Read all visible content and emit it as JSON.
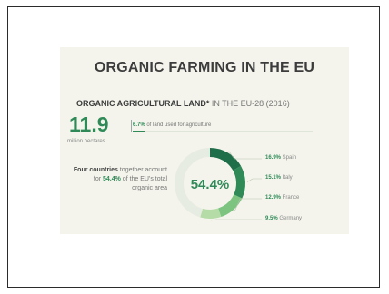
{
  "title": "ORGANIC FARMING IN THE EU",
  "subtitle": {
    "bold": "ORGANIC AGRICULTURAL LAND*",
    "rest": " IN THE EU-28 (2016)"
  },
  "headline": {
    "value": "11.9",
    "unit": "million hectares",
    "share_pct": "6.7%",
    "share_text": " of land used for agriculture",
    "share_fraction": 0.067
  },
  "note": {
    "bold": "Four countries",
    "text1": " together account for ",
    "highlight": "54.4%",
    "text2": " of the EU's total organic area"
  },
  "center_label": "54.4%",
  "colors": {
    "dark": "#1f6e4a",
    "mid": "#2f8a58",
    "light": "#7cc47f",
    "pale": "#b5dca6",
    "rest": "#e7ece2"
  },
  "chart_data": {
    "type": "pie",
    "title": "ORGANIC AGRICULTURAL LAND* IN THE EU-28 (2016)",
    "series": [
      {
        "name": "Spain",
        "value": 16.9,
        "label": "16.9%"
      },
      {
        "name": "Italy",
        "value": 15.1,
        "label": "15.1%"
      },
      {
        "name": "France",
        "value": 12.9,
        "label": "12.9%"
      },
      {
        "name": "Germany",
        "value": 9.5,
        "label": "9.5%"
      }
    ],
    "total_shown": 54.4
  }
}
